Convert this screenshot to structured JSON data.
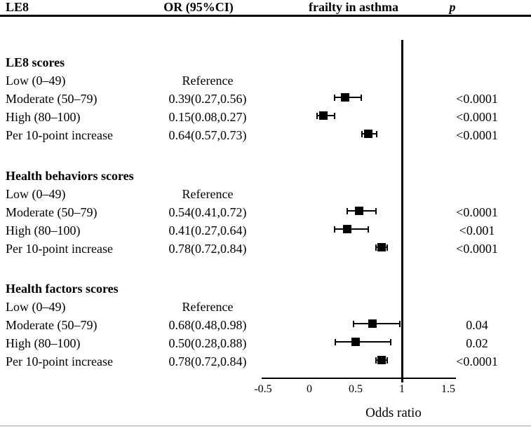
{
  "header": {
    "col_le8": "LE8",
    "col_or_ci": "OR (95%CI)",
    "col_outcome": "frailty in asthma",
    "col_p": "p"
  },
  "axis": {
    "xlabel": "Odds ratio",
    "ticks": [
      {
        "label": "-0.5",
        "value": -0.5
      },
      {
        "label": "0",
        "value": 0
      },
      {
        "label": "0.5",
        "value": 0.5
      },
      {
        "label": "1",
        "value": 1
      },
      {
        "label": "1.5",
        "value": 1.5
      }
    ],
    "reference_line_value": 1
  },
  "colors": {
    "text": "#000000",
    "plot_lines": "#000000",
    "marker": "#000000",
    "bottom_rule": "#c9ced2"
  },
  "chart_data": {
    "type": "scatter",
    "subtype": "forest_plot",
    "outcome": "frailty in asthma",
    "xlabel": "Odds ratio",
    "xlim": [
      -0.5,
      1.5
    ],
    "x_ticks": [
      -0.5,
      0,
      0.5,
      1,
      1.5
    ],
    "reference_line_x": 1,
    "marker_style": "black-square-with-whisker-caps",
    "groups": [
      {
        "title": "LE8 scores",
        "rows": [
          {
            "label": "Low (0–49)",
            "or_ci": "Reference",
            "p": "",
            "or": null,
            "ci_low": null,
            "ci_high": null
          },
          {
            "label": "Moderate (50–79)",
            "or_ci": "0.39(0.27,0.56)",
            "p": "<0.0001",
            "or": 0.39,
            "ci_low": 0.27,
            "ci_high": 0.56
          },
          {
            "label": "High (80–100)",
            "or_ci": "0.15(0.08,0.27)",
            "p": "<0.0001",
            "or": 0.15,
            "ci_low": 0.08,
            "ci_high": 0.27
          },
          {
            "label": "Per 10-point increase",
            "or_ci": "0.64(0.57,0.73)",
            "p": "<0.0001",
            "or": 0.64,
            "ci_low": 0.57,
            "ci_high": 0.73
          }
        ]
      },
      {
        "title": "Health behaviors scores",
        "rows": [
          {
            "label": "Low (0–49)",
            "or_ci": "Reference",
            "p": "",
            "or": null,
            "ci_low": null,
            "ci_high": null
          },
          {
            "label": "Moderate (50–79)",
            "or_ci": "0.54(0.41,0.72)",
            "p": "<0.0001",
            "or": 0.54,
            "ci_low": 0.41,
            "ci_high": 0.72
          },
          {
            "label": "High (80–100)",
            "or_ci": "0.41(0.27,0.64)",
            "p": "<0.001",
            "or": 0.41,
            "ci_low": 0.27,
            "ci_high": 0.64
          },
          {
            "label": "Per 10-point increase",
            "or_ci": "0.78(0.72,0.84)",
            "p": "<0.0001",
            "or": 0.78,
            "ci_low": 0.72,
            "ci_high": 0.84
          }
        ]
      },
      {
        "title": "Health factors scores",
        "rows": [
          {
            "label": "Low (0–49)",
            "or_ci": "Reference",
            "p": "",
            "or": null,
            "ci_low": null,
            "ci_high": null
          },
          {
            "label": "Moderate (50–79)",
            "or_ci": "0.68(0.48,0.98)",
            "p": "0.04",
            "or": 0.68,
            "ci_low": 0.48,
            "ci_high": 0.98
          },
          {
            "label": "High (80–100)",
            "or_ci": "0.50(0.28,0.88)",
            "p": "0.02",
            "or": 0.5,
            "ci_low": 0.28,
            "ci_high": 0.88
          },
          {
            "label": "Per 10-point increase",
            "or_ci": "0.78(0.72,0.84)",
            "p": "<0.0001",
            "or": 0.78,
            "ci_low": 0.72,
            "ci_high": 0.84
          }
        ]
      }
    ]
  }
}
